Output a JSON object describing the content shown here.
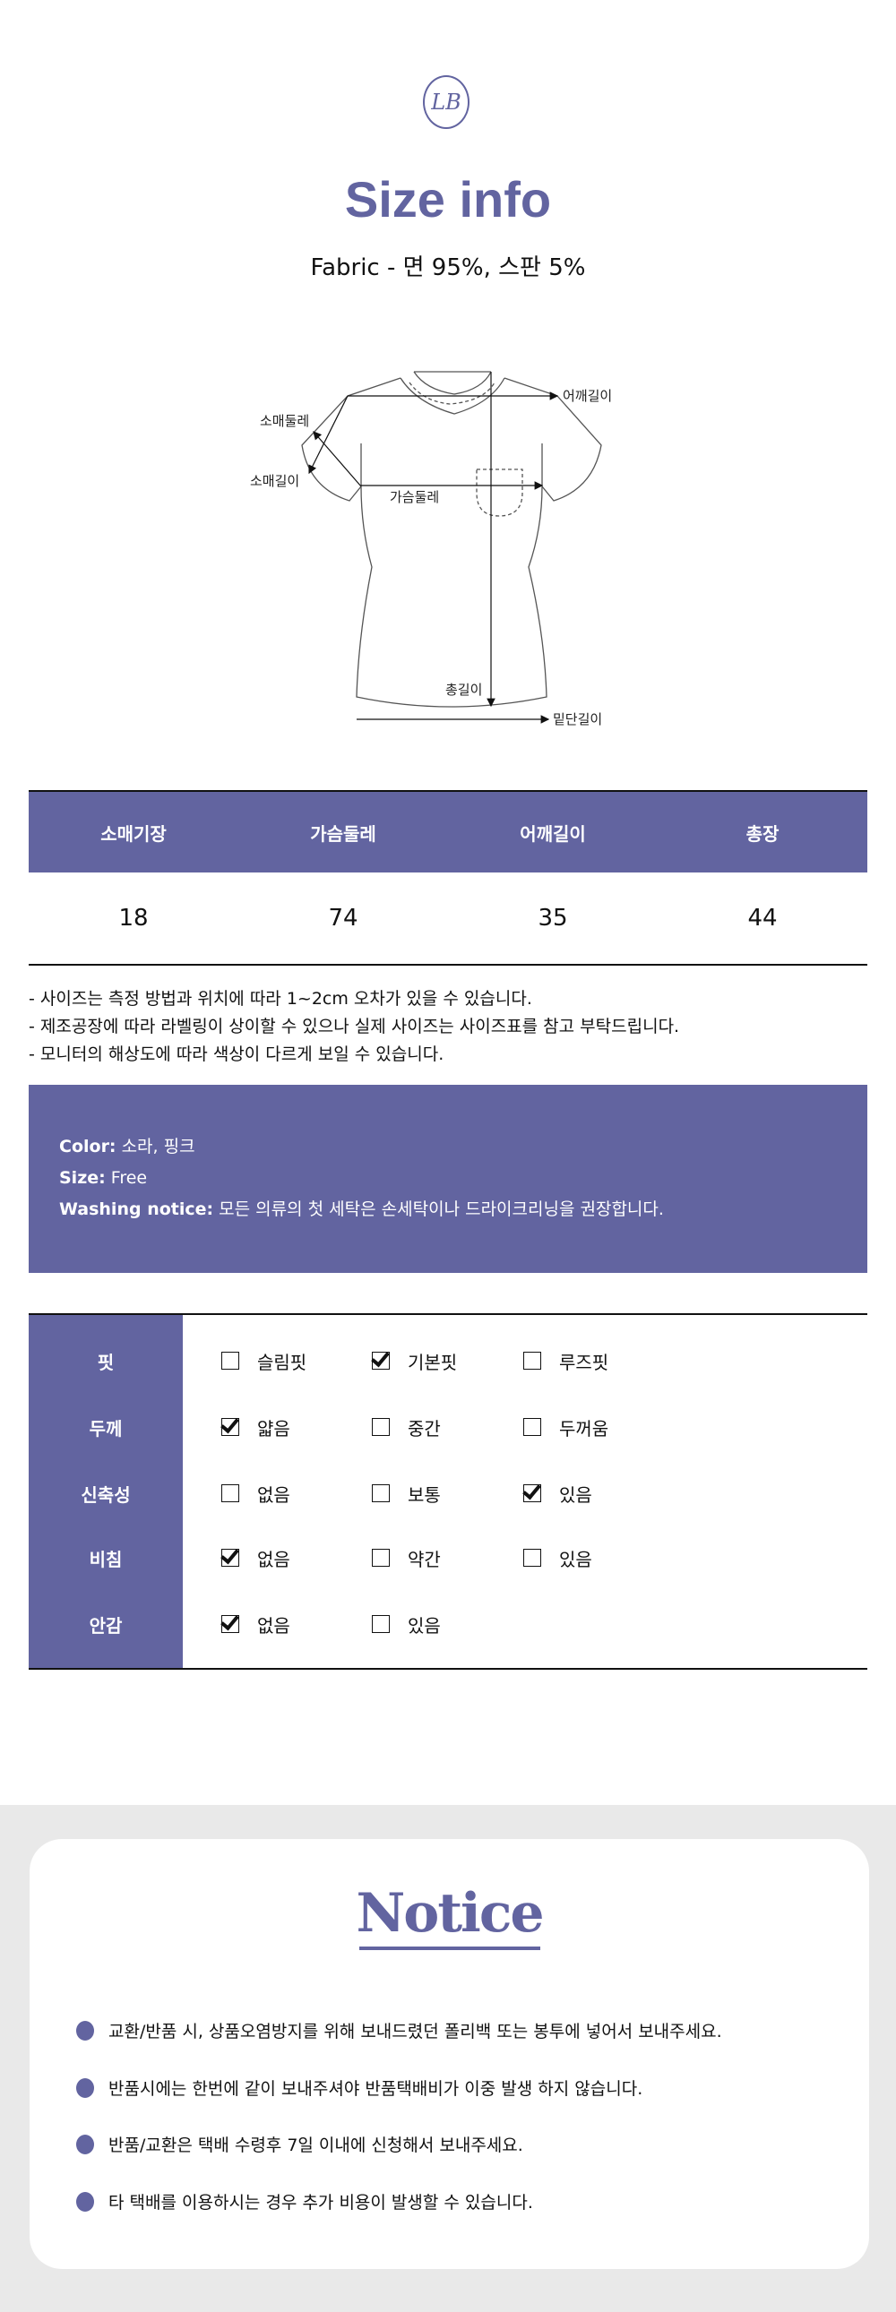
{
  "header": {
    "logo": "LB",
    "title": "Size info",
    "fabric": "Fabric - 면 95%, 스판 5%"
  },
  "diagram": {
    "labels": {
      "shoulder": "어깨길이",
      "sleeve_circ": "소매둘레",
      "sleeve_len": "소매길이",
      "chest": "가슴둘레",
      "total": "총길이",
      "hem": "밑단길이"
    }
  },
  "size_table": {
    "headers": [
      "소매기장",
      "가슴둘레",
      "어깨길이",
      "총장"
    ],
    "values": [
      "18",
      "74",
      "35",
      "44"
    ]
  },
  "notes": [
    "- 사이즈는 측정 방법과 위치에 따라 1~2cm 오차가 있을 수 있습니다.",
    "- 제조공장에 따라 라벨링이 상이할 수 있으나 실제 사이즈는 사이즈표를 참고 부탁드립니다.",
    "- 모니터의 해상도에 따라 색상이 다르게 보일 수 있습니다."
  ],
  "info": {
    "color_label": "Color:",
    "color": "소라, 핑크",
    "size_label": "Size:",
    "size": "Free",
    "wash_label": "Washing notice:",
    "wash": "모든 의류의 첫 세탁은 손세탁이나 드라이크리닝을 권장합니다."
  },
  "checklist": [
    {
      "label": "핏",
      "options": [
        {
          "text": "슬림핏",
          "checked": false
        },
        {
          "text": "기본핏",
          "checked": true
        },
        {
          "text": "루즈핏",
          "checked": false
        }
      ]
    },
    {
      "label": "두께",
      "options": [
        {
          "text": "얇음",
          "checked": true
        },
        {
          "text": "중간",
          "checked": false
        },
        {
          "text": "두꺼움",
          "checked": false
        }
      ]
    },
    {
      "label": "신축성",
      "options": [
        {
          "text": "없음",
          "checked": false
        },
        {
          "text": "보통",
          "checked": false
        },
        {
          "text": "있음",
          "checked": true
        }
      ]
    },
    {
      "label": "비침",
      "options": [
        {
          "text": "없음",
          "checked": true
        },
        {
          "text": "약간",
          "checked": false
        },
        {
          "text": "있음",
          "checked": false
        }
      ]
    },
    {
      "label": "안감",
      "options": [
        {
          "text": "없음",
          "checked": true
        },
        {
          "text": "있음",
          "checked": false
        }
      ]
    }
  ],
  "notice": {
    "title": "Notice",
    "items": [
      "교환/반품 시, 상품오염방지를 위해 보내드렸던 폴리백 또는 봉투에 넣어서 보내주세요.",
      "반품시에는 한번에 같이 보내주셔야 반품택배비가 이중 발생 하지 않습니다.",
      "반품/교환은 택배 수령후 7일 이내에 신청해서 보내주세요.",
      "타 택배를 이용하시는 경우 추가 비용이 발생할 수 있습니다."
    ]
  },
  "colors": {
    "accent": "#6264a0",
    "notice_bg": "#e9e9e9"
  }
}
